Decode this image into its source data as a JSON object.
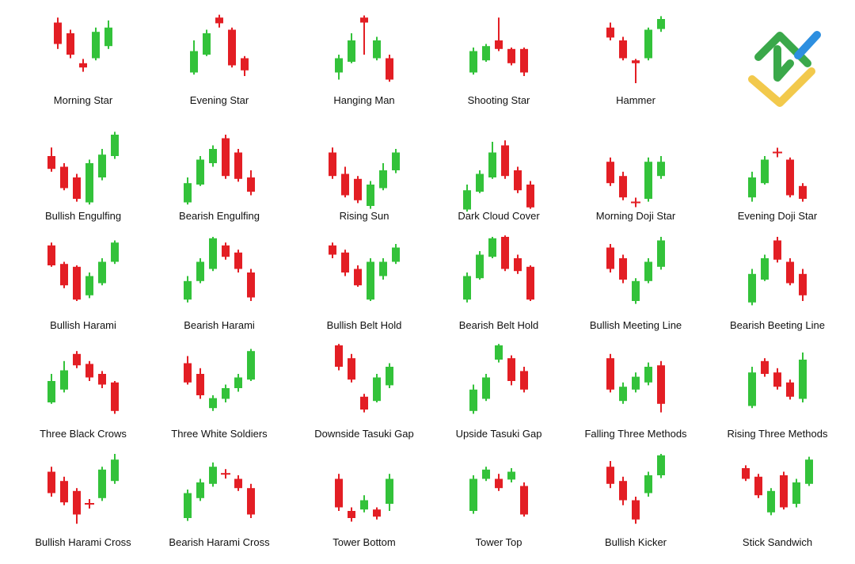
{
  "patterns": [
    {
      "label": "Morning Star"
    },
    {
      "label": "Evening Star"
    },
    {
      "label": "Hanging Man"
    },
    {
      "label": "Shooting Star"
    },
    {
      "label": "Hammer"
    },
    {
      "label": "Bullish Engulfing"
    },
    {
      "label": "Bearish Engulfing"
    },
    {
      "label": "Rising Sun"
    },
    {
      "label": "Dark Cloud Cover"
    },
    {
      "label": "Morning Doji Star"
    },
    {
      "label": "Evening Doji Star"
    },
    {
      "label": "Bullish Harami"
    },
    {
      "label": "Bearish Harami"
    },
    {
      "label": "Bullish Belt Hold"
    },
    {
      "label": "Bearish Belt Hold"
    },
    {
      "label": "Bullish Meeting Line"
    },
    {
      "label": "Bearish Beeting Line"
    },
    {
      "label": "Three Black Crows"
    },
    {
      "label": "Three White Soldiers"
    },
    {
      "label": "Downside Tasuki Gap"
    },
    {
      "label": "Upside Tasuki Gap"
    },
    {
      "label": "Falling Three Methods"
    },
    {
      "label": "Rising Three Methods"
    },
    {
      "label": "Bullish Harami Cross"
    },
    {
      "label": "Bearish Harami Cross"
    },
    {
      "label": "Tower Bottom"
    },
    {
      "label": "Tower Top"
    },
    {
      "label": "Bullish Kicker"
    },
    {
      "label": "Stick Sandwich"
    }
  ]
}
